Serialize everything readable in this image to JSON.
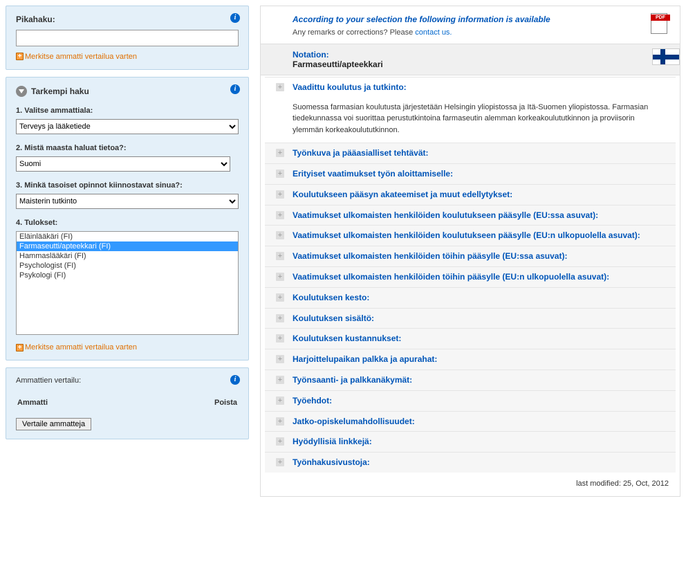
{
  "colors": {
    "panel_bg": "#e4f0f9",
    "panel_border": "#b8d4e8",
    "link_blue": "#0055b8",
    "orange": "#e07000",
    "selected_bg": "#3399ff",
    "flag_blue": "#003580"
  },
  "quicksearch": {
    "title": "Pikahaku:",
    "value": "",
    "mark": "Merkitse ammatti vertailua varten"
  },
  "advanced": {
    "title": "Tarkempi haku",
    "field1": {
      "label": "1. Valitse ammattiala:",
      "value": "Terveys ja lääketiede"
    },
    "field2": {
      "label": "2. Mistä maasta haluat tietoa?:",
      "value": "Suomi"
    },
    "field3": {
      "label": "3. Minkä tasoiset opinnot kiinnostavat sinua?:",
      "value": "Maisterin tutkinto"
    },
    "field4": {
      "label": "4. Tulokset:"
    },
    "results": [
      "Eläinlääkäri (FI)",
      "Farmaseutti/apteekkari (FI)",
      "Hammaslääkäri (FI)",
      "Psychologist (FI)",
      "Psykologi (FI)"
    ],
    "selected_index": 1,
    "mark": "Merkitse ammatti vertailua varten"
  },
  "compare": {
    "title": "Ammattien vertailu:",
    "col1": "Ammatti",
    "col2": "Poista",
    "button": "Vertaile ammatteja"
  },
  "main": {
    "header_title": "According to your selection the following information is available",
    "header_sub_prefix": "Any remarks or corrections? Please ",
    "header_sub_link": "contact us.",
    "pdf_label": "PDF",
    "notation_label": "Notation:",
    "notation_value": "Farmaseutti/apteekkari",
    "sections": [
      {
        "title": "Vaadittu koulutus ja tutkinto:",
        "expanded": true,
        "body": "Suomessa farmasian koulutusta järjestetään Helsingin yliopistossa ja Itä-Suomen yliopistossa. Farmasian tiedekunnassa voi suorittaa perustutkintoina farmaseutin alemman korkeakoulututkinnon ja proviisorin ylemmän korkeakoulututkinnon."
      },
      {
        "title": "Työnkuva ja pääasialliset tehtävät:"
      },
      {
        "title": "Erityiset vaatimukset työn aloittamiselle:"
      },
      {
        "title": "Koulutukseen pääsyn akateemiset ja muut edellytykset:"
      },
      {
        "title": "Vaatimukset ulkomaisten henkilöiden koulutukseen pääsylle (EU:ssa asuvat):"
      },
      {
        "title": "Vaatimukset ulkomaisten henkilöiden koulutukseen pääsylle (EU:n ulkopuolella asuvat):"
      },
      {
        "title": "Vaatimukset ulkomaisten henkilöiden töihin pääsylle (EU:ssa asuvat):"
      },
      {
        "title": "Vaatimukset ulkomaisten henkilöiden töihin pääsylle (EU:n ulkopuolella asuvat):"
      },
      {
        "title": "Koulutuksen kesto:"
      },
      {
        "title": "Koulutuksen sisältö:"
      },
      {
        "title": "Koulutuksen kustannukset:"
      },
      {
        "title": "Harjoittelupaikan palkka ja apurahat:"
      },
      {
        "title": "Työnsaanti- ja palkkanäkymät:"
      },
      {
        "title": "Työehdot:"
      },
      {
        "title": "Jatko-opiskelumahdollisuudet:"
      },
      {
        "title": "Hyödyllisiä linkkejä:"
      },
      {
        "title": "Työnhakusivustoja:"
      }
    ],
    "last_modified": "last modified: 25, Oct, 2012"
  }
}
